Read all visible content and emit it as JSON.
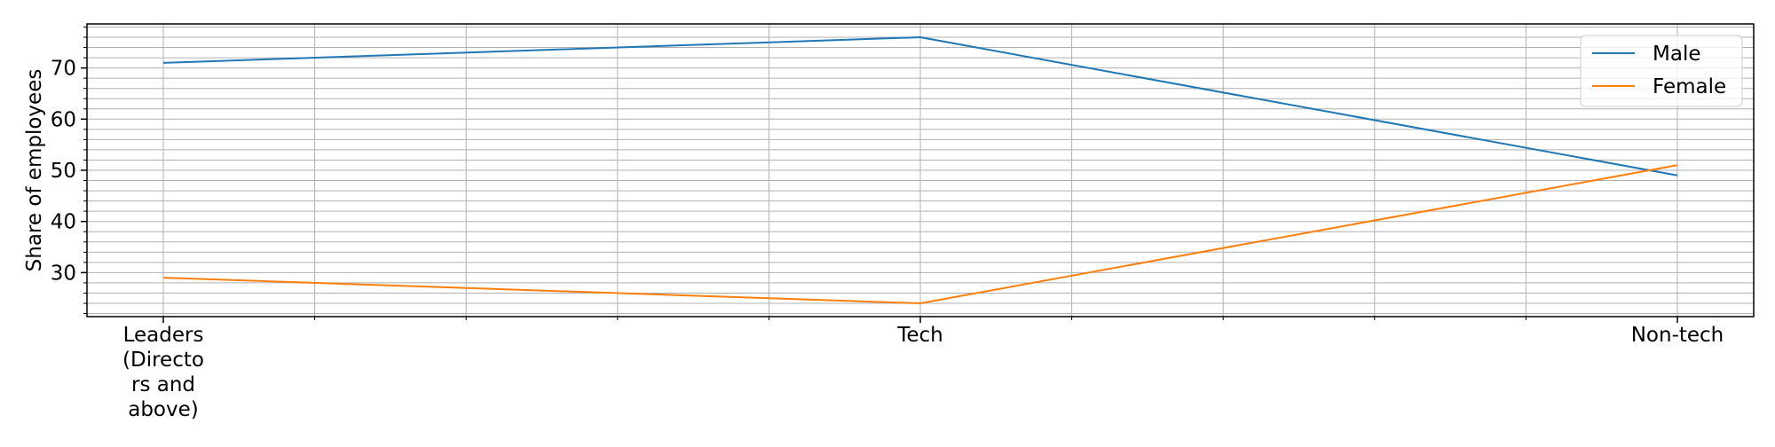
{
  "chart_data": {
    "type": "line",
    "categories": [
      [
        "Leaders",
        "(Directo",
        "rs and",
        "above)"
      ],
      [
        "Tech"
      ],
      [
        "Non-tech"
      ]
    ],
    "series": [
      {
        "name": "Male",
        "values": [
          71,
          76,
          49
        ],
        "color": "#1f77b4"
      },
      {
        "name": "Female",
        "values": [
          29,
          24,
          51
        ],
        "color": "#ff7f0e"
      }
    ],
    "xlabel": "",
    "ylabel": "Share of employees",
    "ylim": [
      21.4,
      78.6
    ],
    "yticks": [
      30,
      40,
      50,
      60,
      70
    ],
    "yminor_step": 2,
    "xminor_per_interval": 5,
    "grid": true,
    "legend_position": "upper right"
  }
}
